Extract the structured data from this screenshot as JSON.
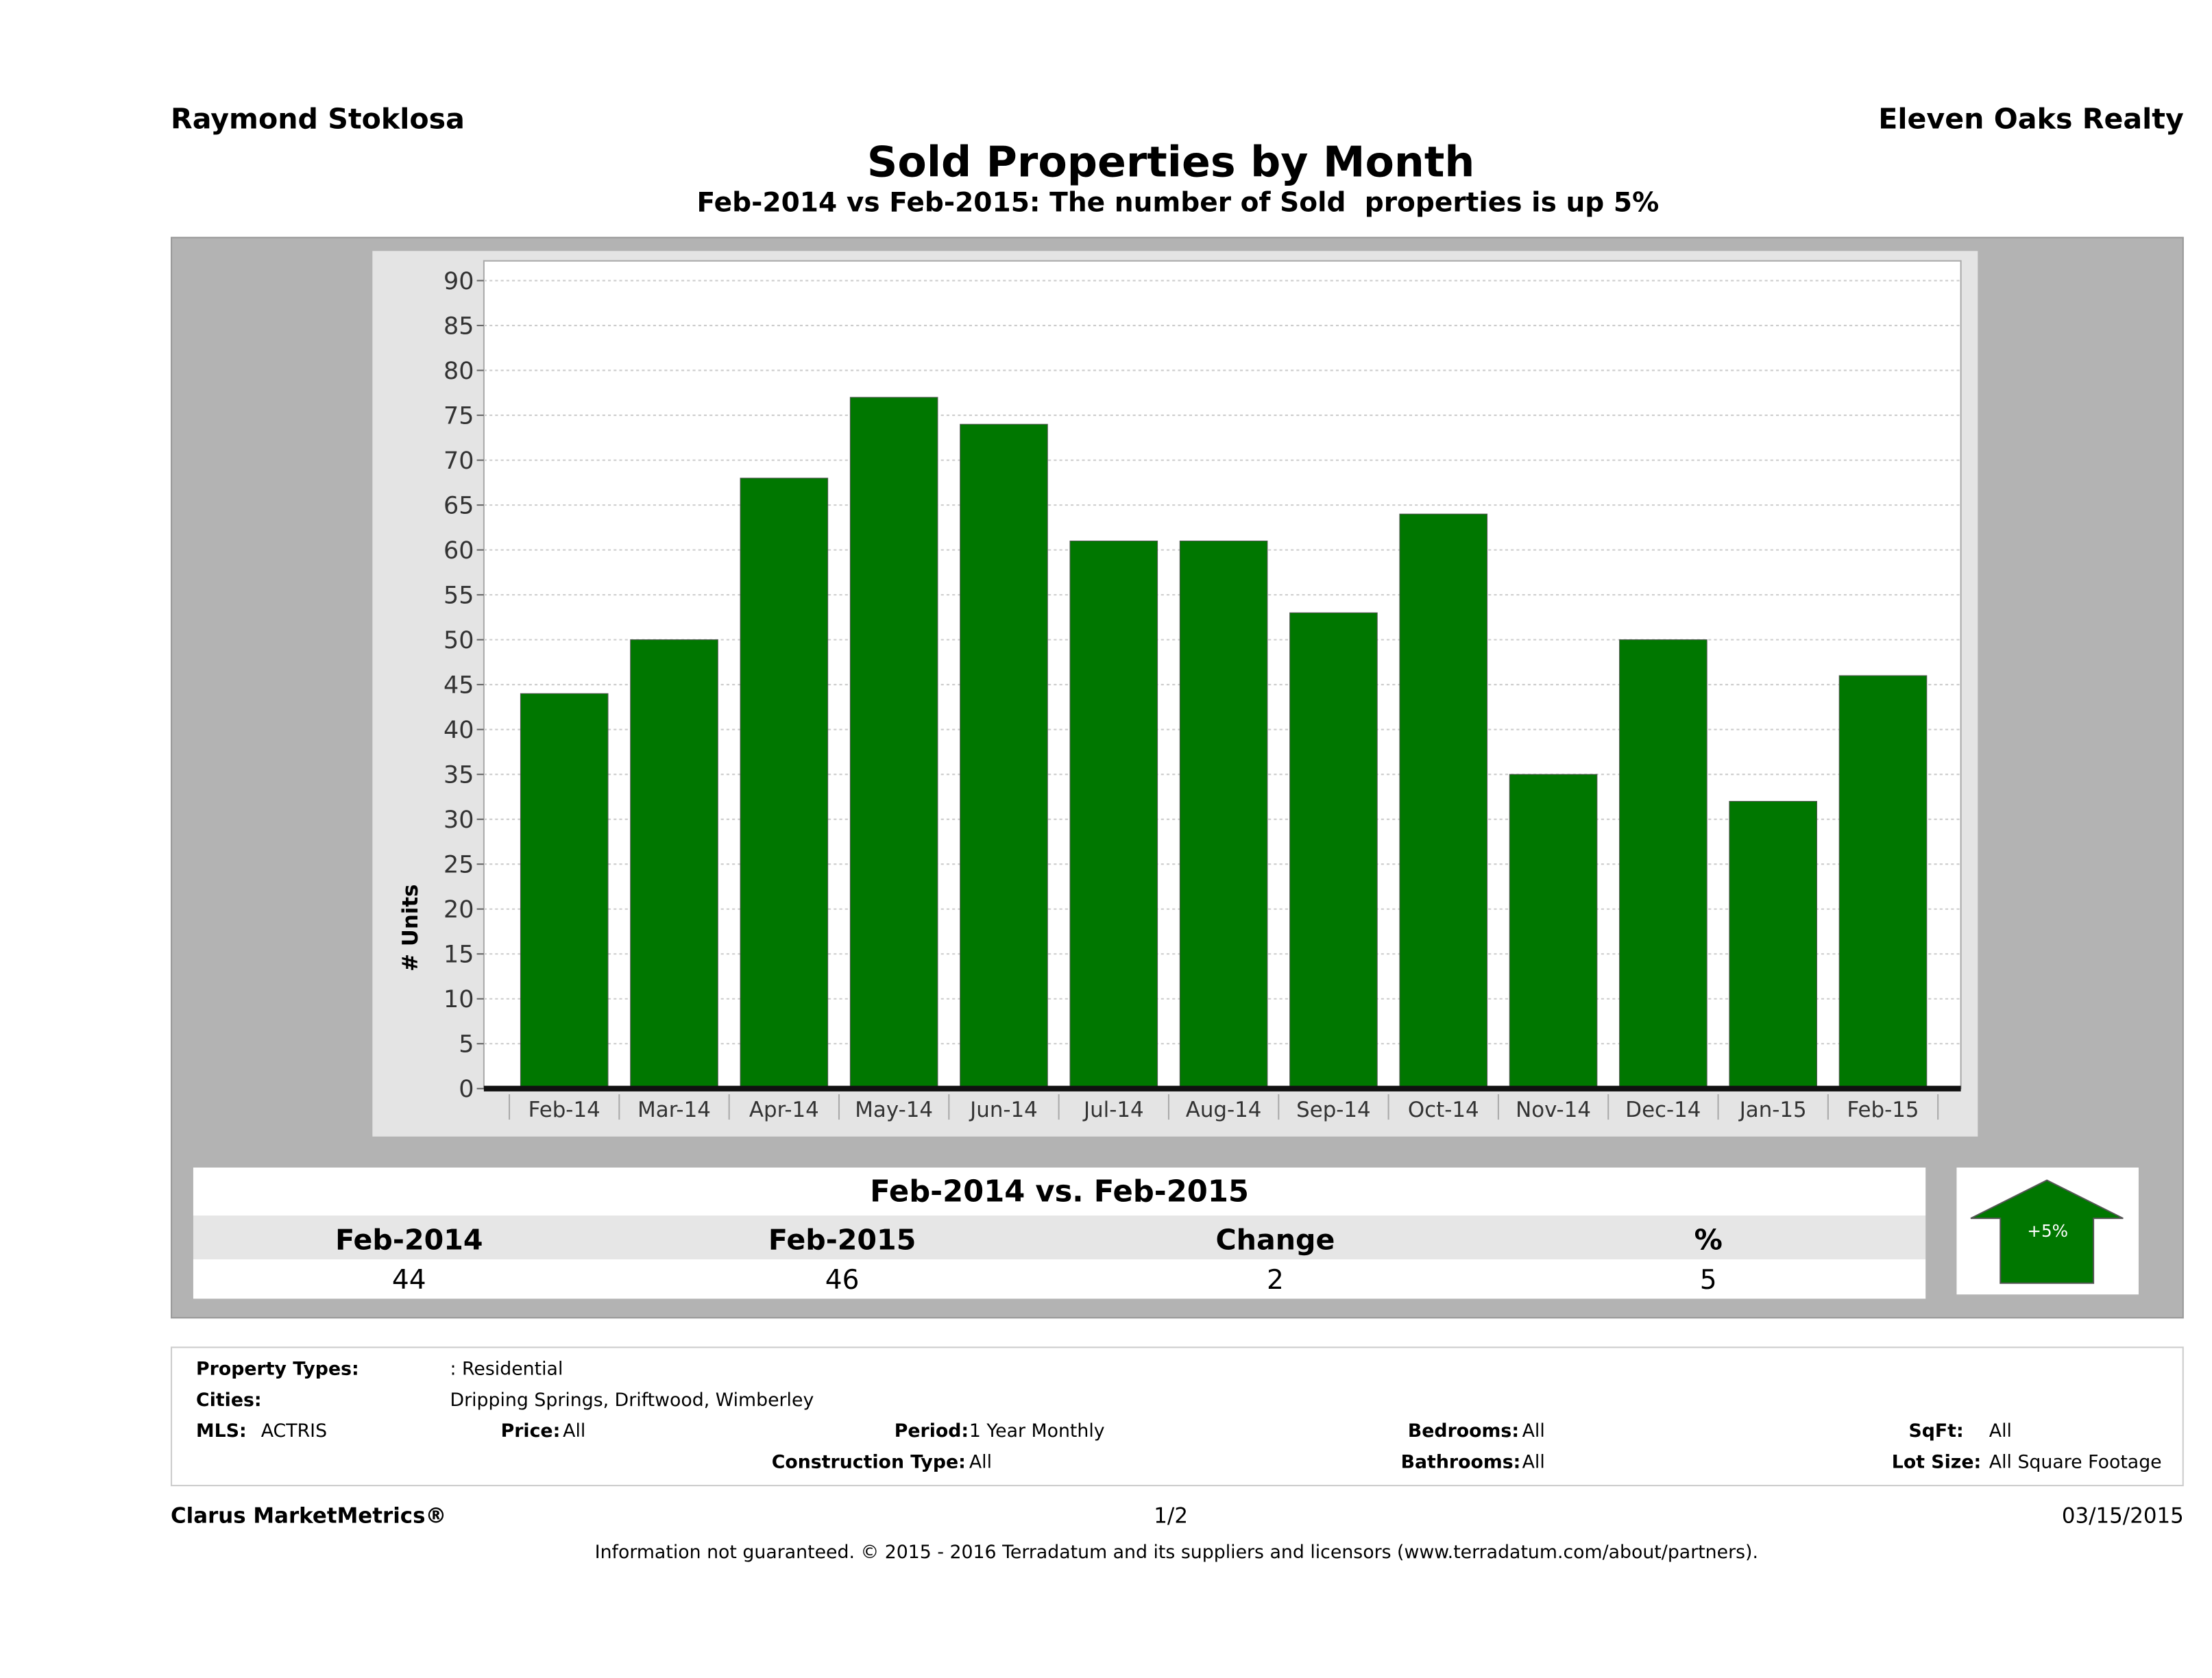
{
  "header": {
    "agent": "Raymond Stoklosa",
    "brokerage": "Eleven Oaks Realty",
    "title": "Sold Properties by Month",
    "subtitle": "Feb-2014 vs Feb-2015: The number of Sold  properties is up 5%"
  },
  "chart_data": {
    "type": "bar",
    "title": "Sold Properties by Month",
    "xlabel": "",
    "ylabel": "# Units",
    "ylim": [
      0,
      90
    ],
    "yticks": [
      0,
      5,
      10,
      15,
      20,
      25,
      30,
      35,
      40,
      45,
      50,
      55,
      60,
      65,
      70,
      75,
      80,
      85,
      90
    ],
    "grid": true,
    "categories": [
      "Feb-14",
      "Mar-14",
      "Apr-14",
      "May-14",
      "Jun-14",
      "Jul-14",
      "Aug-14",
      "Sep-14",
      "Oct-14",
      "Nov-14",
      "Dec-14",
      "Jan-15",
      "Feb-15"
    ],
    "values": [
      44,
      50,
      68,
      77,
      74,
      61,
      61,
      53,
      64,
      35,
      50,
      32,
      46
    ],
    "color": "#007700"
  },
  "summary": {
    "title": "Feb-2014 vs. Feb-2015",
    "headers": [
      "Feb-2014",
      "Feb-2015",
      "Change",
      "%"
    ],
    "values": [
      "44",
      "46",
      "2",
      "5"
    ],
    "badge": "+5%",
    "badge_color": "#007700"
  },
  "filters": {
    "property_types_label": "Property Types:",
    "property_types": ": Residential",
    "cities_label": "Cities:",
    "cities": "Dripping Springs, Driftwood, Wimberley",
    "mls_label": "MLS:",
    "mls": "ACTRIS",
    "price_label": "Price:",
    "price": "All",
    "period_label": "Period:",
    "period": "1 Year Monthly",
    "bedrooms_label": "Bedrooms:",
    "bedrooms": "All",
    "sqft_label": "SqFt:",
    "sqft": "All",
    "construction_label": "Construction Type:",
    "construction": "All",
    "bathrooms_label": "Bathrooms:",
    "bathrooms": "All",
    "lot_label": "Lot Size:",
    "lot": "All Square Footage"
  },
  "footer": {
    "brand": "Clarus MarketMetrics®",
    "page": "1/2",
    "date": "03/15/2015",
    "disclaimer": "Information not guaranteed. © 2015 - 2016 Terradatum and its suppliers and licensors (www.terradatum.com/about/partners)."
  }
}
